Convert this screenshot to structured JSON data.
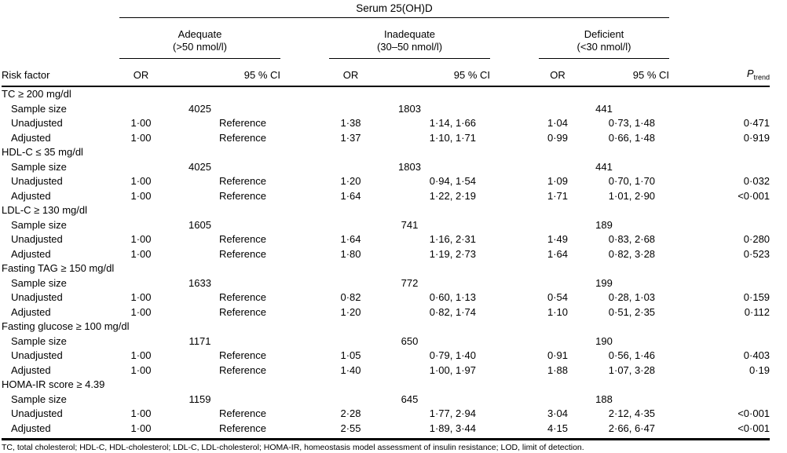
{
  "table": {
    "spanner": "Serum 25(OH)D",
    "groups": [
      {
        "name": "Adequate",
        "range": "(>50 nmol/l)"
      },
      {
        "name": "Inadequate",
        "range": "(30–50 nmol/l)"
      },
      {
        "name": "Deficient",
        "range": "(<30 nmol/l)"
      }
    ],
    "headers": {
      "risk_factor": "Risk factor",
      "or": "OR",
      "ci": "95 % CI",
      "p": "P",
      "p_sub": "trend"
    },
    "sections": [
      {
        "label": "TC ≥ 200 mg/dl",
        "sample_label": "Sample size",
        "samples": [
          "4025",
          "1803",
          "441"
        ],
        "rows": [
          {
            "label": "Unadjusted",
            "or1": "1·00",
            "ci1": "Reference",
            "or2": "1·38",
            "ci2": "1·14, 1·66",
            "or3": "1·04",
            "ci3": "0·73, 1·48",
            "p": "0·471"
          },
          {
            "label": "Adjusted",
            "or1": "1·00",
            "ci1": "Reference",
            "or2": "1·37",
            "ci2": "1·10, 1·71",
            "or3": "0·99",
            "ci3": "0·66, 1·48",
            "p": "0·919"
          }
        ]
      },
      {
        "label": "HDL-C ≤ 35 mg/dl",
        "sample_label": "Sample size",
        "samples": [
          "4025",
          "1803",
          "441"
        ],
        "rows": [
          {
            "label": "Unadjusted",
            "or1": "1·00",
            "ci1": "Reference",
            "or2": "1·20",
            "ci2": "0·94, 1·54",
            "or3": "1·09",
            "ci3": "0·70, 1·70",
            "p": "0·032"
          },
          {
            "label": "Adjusted",
            "or1": "1·00",
            "ci1": "Reference",
            "or2": "1·64",
            "ci2": "1·22, 2·19",
            "or3": "1·71",
            "ci3": "1·01, 2·90",
            "p": "<0·001"
          }
        ]
      },
      {
        "label": "LDL-C ≥ 130 mg/dl",
        "sample_label": "Sample size",
        "samples": [
          "1605",
          "741",
          "189"
        ],
        "rows": [
          {
            "label": "Unadjusted",
            "or1": "1·00",
            "ci1": "Reference",
            "or2": "1·64",
            "ci2": "1·16, 2·31",
            "or3": "1·49",
            "ci3": "0·83, 2·68",
            "p": "0·280"
          },
          {
            "label": "Adjusted",
            "or1": "1·00",
            "ci1": "Reference",
            "or2": "1·80",
            "ci2": "1·19, 2·73",
            "or3": "1·64",
            "ci3": "0·82, 3·28",
            "p": "0·523"
          }
        ]
      },
      {
        "label": "Fasting TAG ≥ 150 mg/dl",
        "sample_label": "Sample size",
        "samples": [
          "1633",
          "772",
          "199"
        ],
        "rows": [
          {
            "label": "Unadjusted",
            "or1": "1·00",
            "ci1": "Reference",
            "or2": "0·82",
            "ci2": "0·60, 1·13",
            "or3": "0·54",
            "ci3": "0·28, 1·03",
            "p": "0·159"
          },
          {
            "label": "Adjusted",
            "or1": "1·00",
            "ci1": "Reference",
            "or2": "1·20",
            "ci2": "0·82, 1·74",
            "or3": "1·10",
            "ci3": "0·51, 2·35",
            "p": "0·112"
          }
        ]
      },
      {
        "label": "Fasting glucose ≥ 100 mg/dl",
        "sample_label": "Sample size",
        "samples": [
          "1171",
          "650",
          "190"
        ],
        "rows": [
          {
            "label": "Unadjusted",
            "or1": "1·00",
            "ci1": "Reference",
            "or2": "1·05",
            "ci2": "0·79, 1·40",
            "or3": "0·91",
            "ci3": "0·56, 1·46",
            "p": "0·403"
          },
          {
            "label": "Adjusted",
            "or1": "1·00",
            "ci1": "Reference",
            "or2": "1·40",
            "ci2": "1·00, 1·97",
            "or3": "1·88",
            "ci3": "1·07, 3·28",
            "p": "0·19"
          }
        ]
      },
      {
        "label": "HOMA-IR score ≥ 4.39",
        "sample_label": "Sample size",
        "samples": [
          "1159",
          "645",
          "188"
        ],
        "rows": [
          {
            "label": "Unadjusted",
            "or1": "1·00",
            "ci1": "Reference",
            "or2": "2·28",
            "ci2": "1·77, 2·94",
            "or3": "3·04",
            "ci3": "2·12, 4·35",
            "p": "<0·001"
          },
          {
            "label": "Adjusted",
            "or1": "1·00",
            "ci1": "Reference",
            "or2": "2·55",
            "ci2": "1·89, 3·44",
            "or3": "4·15",
            "ci3": "2·66, 6·47",
            "p": "<0·001"
          }
        ]
      }
    ],
    "footnote": "TC, total cholesterol; HDL-C, HDL-cholesterol; LDL-C, LDL-cholesterol; HOMA-IR, homeostasis model assessment of insulin resistance; LOD, limit of detection."
  }
}
